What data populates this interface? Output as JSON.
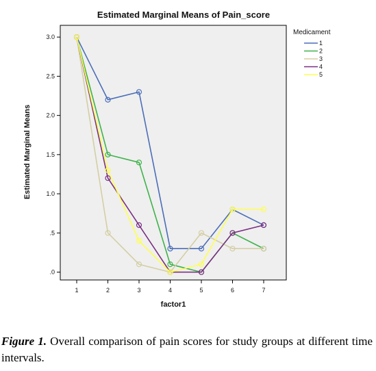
{
  "chart_data": {
    "type": "line",
    "title": "Estimated Marginal Means of Pain_score",
    "xlabel": "factor1",
    "ylabel": "Estimated Marginal Means",
    "categories": [
      "1",
      "2",
      "3",
      "4",
      "5",
      "6",
      "7"
    ],
    "y_ticks": [
      ".0",
      ".5",
      "1.0",
      "1.5",
      "2.0",
      "2.5",
      "3.0"
    ],
    "ylim": [
      -0.1,
      3.15
    ],
    "grid": false,
    "plot_background": "#efefef",
    "legend_title": "Medicament",
    "legend_position": "right",
    "series": [
      {
        "name": "1",
        "color": "#4a6db8",
        "values": [
          3.0,
          2.2,
          2.3,
          0.3,
          0.3,
          0.8,
          0.6
        ]
      },
      {
        "name": "2",
        "color": "#3db24a",
        "values": [
          3.0,
          1.5,
          1.4,
          0.1,
          0.0,
          0.5,
          0.3
        ]
      },
      {
        "name": "3",
        "color": "#d4cea4",
        "values": [
          3.0,
          0.5,
          0.1,
          0.0,
          0.5,
          0.3,
          0.3
        ]
      },
      {
        "name": "4",
        "color": "#7a2f82",
        "values": [
          3.0,
          1.2,
          0.6,
          0.0,
          0.0,
          0.5,
          0.6
        ]
      },
      {
        "name": "5",
        "color": "#ffff4c",
        "values": [
          3.0,
          1.3,
          0.4,
          0.0,
          0.1,
          0.8,
          0.8
        ]
      }
    ]
  },
  "caption": {
    "label": "Figure 1.",
    "text": " Overall comparison of pain scores for study groups at different time intervals."
  }
}
